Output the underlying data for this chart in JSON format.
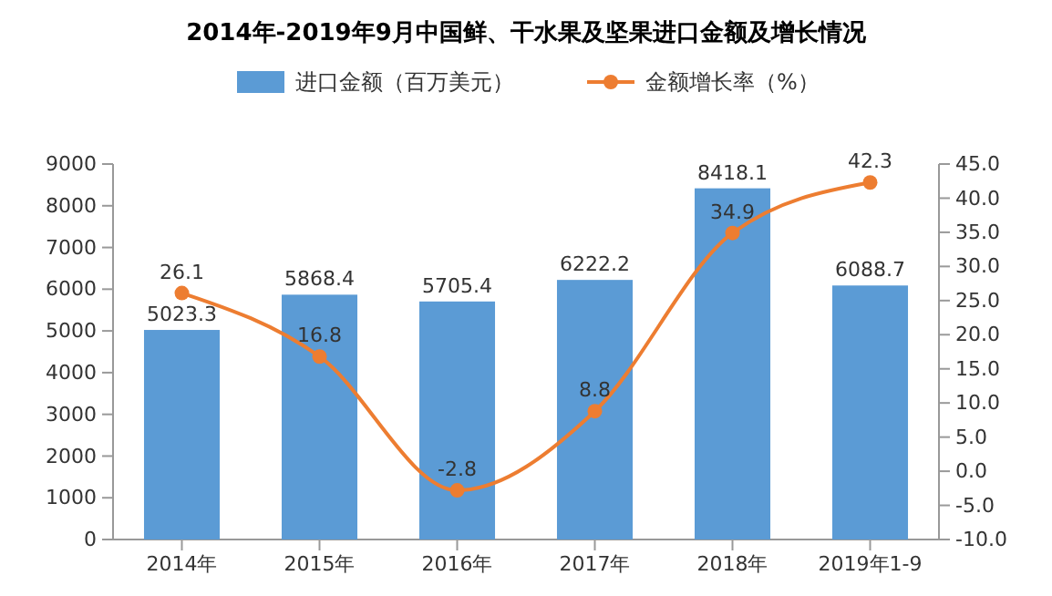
{
  "chart_data": {
    "type": "bar",
    "title": "2014年-2019年9月中国鲜、干水果及坚果进口金额及增长情况",
    "categories": [
      "2014年",
      "2015年",
      "2016年",
      "2017年",
      "2018年",
      "2019年1-9"
    ],
    "series": [
      {
        "name": "进口金额（百万美元）",
        "color": "#5b9bd5",
        "values": [
          5023.3,
          5868.4,
          5705.4,
          6222.2,
          8418.1,
          6088.7
        ]
      },
      {
        "name": "金额增长率（%）",
        "type": "line",
        "axis": "y2",
        "color": "#ed7d31",
        "marker": "circle",
        "values": [
          26.1,
          16.8,
          -2.8,
          8.8,
          34.9,
          42.3
        ]
      }
    ],
    "ylim": [
      0,
      9000
    ],
    "yticks": [
      0,
      1000,
      2000,
      3000,
      4000,
      5000,
      6000,
      7000,
      8000,
      9000
    ],
    "y2lim": [
      -10,
      45
    ],
    "y2ticks": [
      {
        "value": -10,
        "label": "-10.0"
      },
      {
        "value": -5,
        "label": "-5.0"
      },
      {
        "value": 0,
        "label": "0.0"
      },
      {
        "value": 5,
        "label": "5.0"
      },
      {
        "value": 10,
        "label": "10.0"
      },
      {
        "value": 15,
        "label": "15.0"
      },
      {
        "value": 20,
        "label": "20.0"
      },
      {
        "value": 25,
        "label": "25.0"
      },
      {
        "value": 30,
        "label": "30.0"
      },
      {
        "value": 35,
        "label": "35.0"
      },
      {
        "value": 40,
        "label": "40.0"
      },
      {
        "value": 45,
        "label": "45.0"
      }
    ],
    "data_labels": true,
    "legend": "top",
    "grid": false
  }
}
